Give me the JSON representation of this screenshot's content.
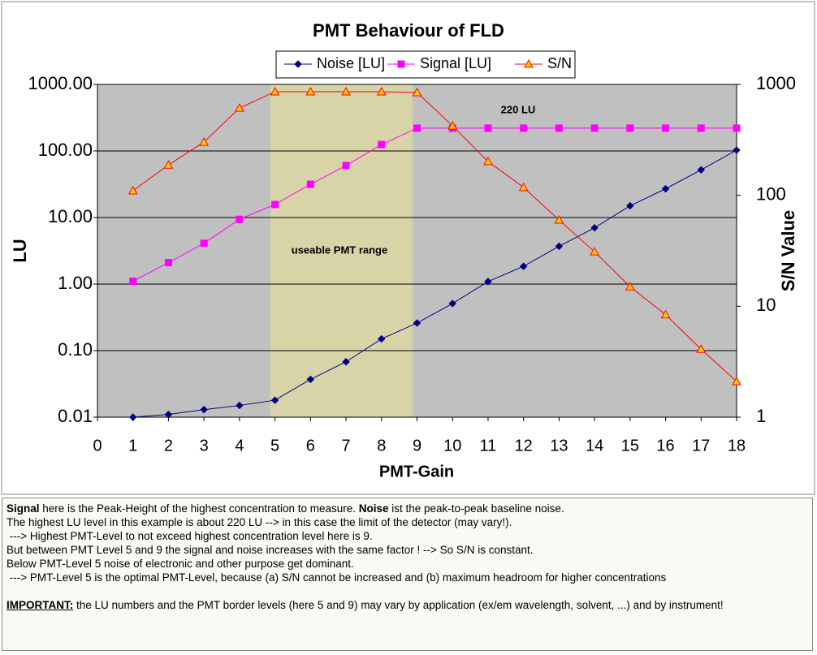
{
  "chart_data": {
    "type": "line",
    "title": "PMT Behaviour  of FLD",
    "x_label": "PMT-Gain",
    "y_label": "LU",
    "y2_label": "S/N Value",
    "x": [
      1,
      2,
      3,
      4,
      5,
      6,
      7,
      8,
      9,
      10,
      11,
      12,
      13,
      14,
      15,
      16,
      17,
      18
    ],
    "series": [
      {
        "name": "Noise [LU]",
        "color": "#000080",
        "marker": "diamond",
        "marker_fill": "#000080",
        "values": [
          0.01,
          0.011,
          0.013,
          0.015,
          0.018,
          0.037,
          0.068,
          0.15,
          0.26,
          0.51,
          1.09,
          1.85,
          3.7,
          7,
          15,
          27,
          52,
          103
        ]
      },
      {
        "name": "Signal [LU]",
        "color": "#ff00ff",
        "marker": "square",
        "marker_fill": "#ff00ff",
        "values": [
          1.1,
          2.1,
          4.1,
          9.4,
          15.7,
          31.6,
          60.5,
          125,
          220,
          220,
          220,
          220,
          220,
          220,
          220,
          220,
          220,
          220
        ]
      },
      {
        "name": "S/N",
        "color": "#ff0000",
        "marker": "triangle",
        "marker_fill": "#ffcc00",
        "axis": "y2",
        "values": [
          110,
          188,
          302,
          612,
          860,
          860,
          860,
          860,
          845,
          423,
          202,
          118,
          60,
          31,
          15,
          8.4,
          4.1,
          2.1
        ]
      }
    ],
    "xlim": [
      0,
      18
    ],
    "xticks": [
      0,
      1,
      2,
      3,
      4,
      5,
      6,
      7,
      8,
      9,
      10,
      11,
      12,
      13,
      14,
      15,
      16,
      17,
      18
    ],
    "ylim": [
      0.01,
      1000
    ],
    "y_log": true,
    "yticks": [
      0.01,
      {
        "value": 0.1,
        "label": "0.10"
      },
      {
        "value": 1,
        "label": "1.00"
      },
      {
        "value": 10,
        "label": "10.00"
      },
      {
        "value": 100,
        "label": "100.00"
      },
      {
        "value": 1000,
        "label": "1000.00"
      }
    ],
    "y2lim": [
      1,
      1000
    ],
    "y2_log": true,
    "y2ticks": [
      1,
      10,
      100,
      1000
    ],
    "grid": true,
    "legend": "top",
    "highlight": {
      "x0": 4.87,
      "x1": 8.88,
      "color": "#d8d4a8"
    },
    "annotations": [
      {
        "text": "useable PMT range"
      },
      {
        "text": "220 LU"
      }
    ]
  },
  "notes": {
    "lines": [
      [
        {
          "text": "Signal",
          "style": "bold"
        },
        {
          "text": " here is the Peak-Height of the highest concentration to measure. "
        },
        {
          "text": "Noise",
          "style": "bold"
        },
        {
          "text": " ist the peak-to-peak baseline noise."
        }
      ],
      [
        {
          "text": "The highest LU level in this example is about 220 LU --> in this case the limit of the detector (may vary!)."
        }
      ],
      [
        {
          "text": " ---> Highest PMT-Level to not exceed highest concentration level here is 9."
        }
      ],
      [
        {
          "text": "But between PMT Level 5 and 9 the signal and noise increases with the same factor ! --> So S/N is constant."
        }
      ],
      [
        {
          "text": "Below PMT-Level 5 noise of electronic and other purpose get dominant."
        }
      ],
      [
        {
          "text": " ---> PMT-Level 5 is the optimal PMT-Level, because (a) S/N cannot be increased and (b) maximum headroom for higher concentrations"
        }
      ],
      [
        {
          "text": "IMPORTANT:",
          "style": "bold-underline"
        },
        {
          "text": " the LU numbers and the PMT border levels (here 5 and 9) may vary by application (ex/em wavelength, solvent, ...) and by instrument!"
        }
      ]
    ]
  }
}
